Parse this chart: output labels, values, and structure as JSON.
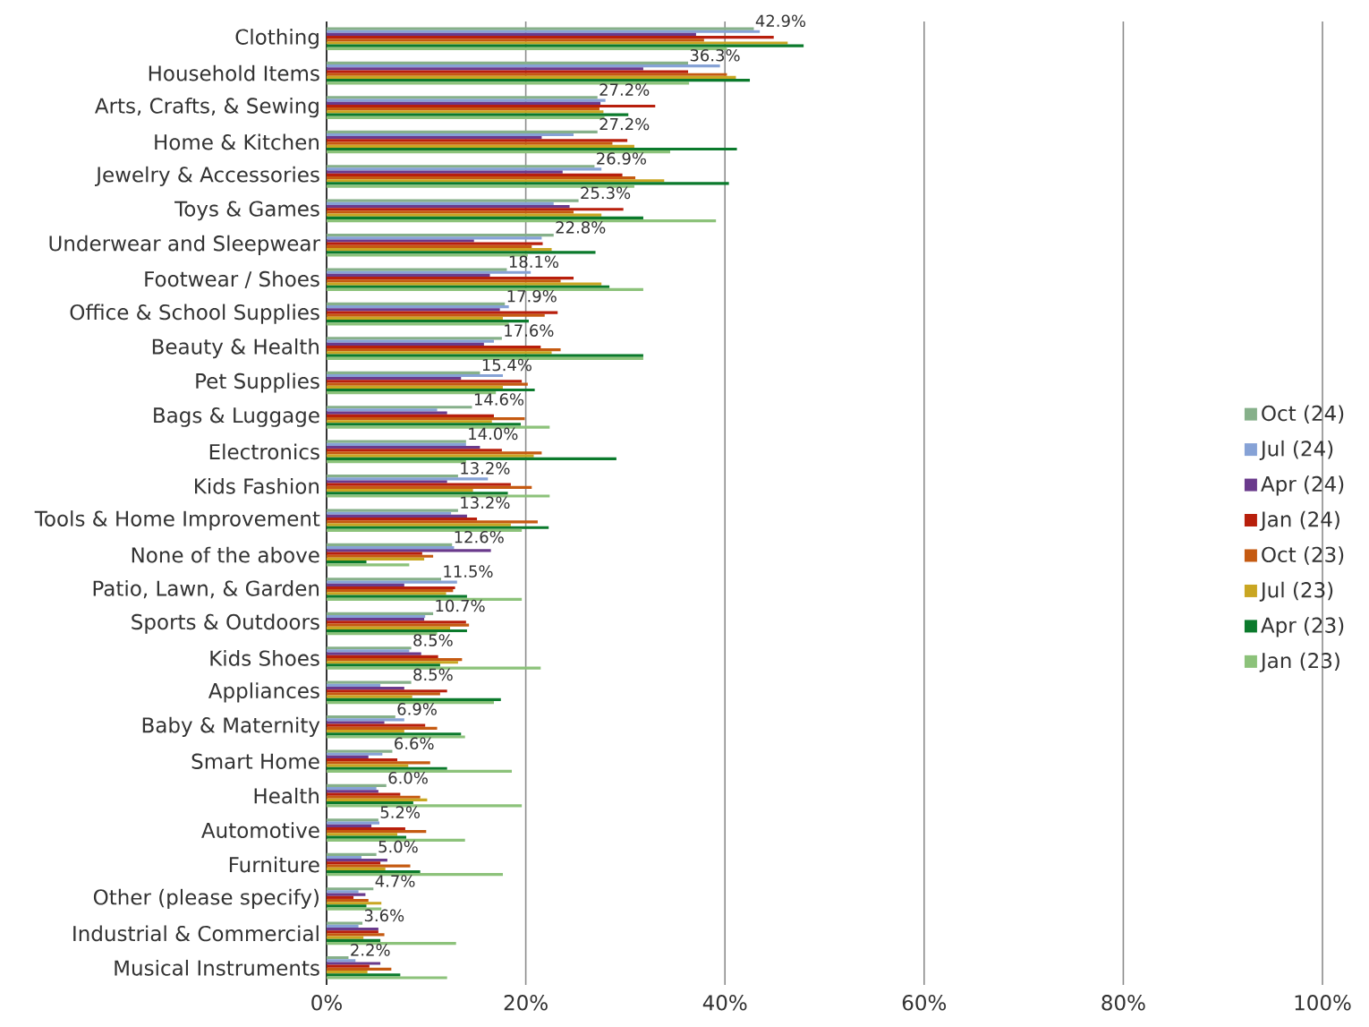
{
  "chart_data": {
    "type": "bar",
    "orientation": "horizontal",
    "categories": [
      "Clothing",
      "Household Items",
      "Arts, Crafts, & Sewing",
      "Home & Kitchen",
      "Jewelry & Accessories",
      "Toys & Games",
      "Underwear and Sleepwear",
      "Footwear / Shoes",
      "Office & School Supplies",
      "Beauty & Health",
      "Pet Supplies",
      "Bags & Luggage",
      "Electronics",
      "Kids Fashion",
      "Tools & Home Improvement",
      "None of the above",
      "Patio, Lawn, & Garden",
      "Sports & Outdoors",
      "Kids Shoes",
      "Appliances",
      "Baby & Maternity",
      "Smart Home",
      "Health",
      "Automotive",
      "Furniture",
      "Other (please specify)",
      "Industrial & Commercial",
      "Musical Instruments"
    ],
    "series": [
      {
        "name": "Oct (24)",
        "color": "#86b08a",
        "values": [
          42.9,
          36.3,
          27.2,
          27.2,
          26.9,
          25.3,
          22.8,
          18.1,
          17.9,
          17.6,
          15.4,
          14.6,
          14.0,
          13.2,
          13.2,
          12.6,
          11.5,
          10.7,
          8.5,
          8.5,
          6.9,
          6.6,
          6.0,
          5.2,
          5.0,
          4.7,
          3.6,
          2.2
        ],
        "value_labels": [
          "42.9%",
          "36.3%",
          "27.2%",
          "27.2%",
          "26.9%",
          "25.3%",
          "22.8%",
          "18.1%",
          "17.9%",
          "17.6%",
          "15.4%",
          "14.6%",
          "14.0%",
          "13.2%",
          "13.2%",
          "12.6%",
          "11.5%",
          "10.7%",
          "8.5%",
          "8.5%",
          "6.9%",
          "6.6%",
          "6.0%",
          "5.2%",
          "5.0%",
          "4.7%",
          "3.6%",
          "2.2%"
        ]
      },
      {
        "name": "Jul (24)",
        "color": "#86a2d6",
        "values": [
          43.5,
          39.5,
          28.0,
          24.8,
          27.6,
          22.8,
          21.6,
          20.5,
          18.3,
          16.8,
          17.7,
          11.1,
          14.0,
          16.2,
          12.5,
          12.8,
          13.1,
          9.9,
          8.3,
          5.4,
          7.8,
          5.6,
          5.0,
          5.3,
          3.5,
          3.2,
          3.2,
          2.9
        ]
      },
      {
        "name": "Apr (24)",
        "color": "#6a3a8c",
        "values": [
          37.1,
          31.8,
          27.5,
          21.6,
          23.7,
          24.4,
          14.8,
          16.4,
          17.4,
          15.8,
          13.5,
          12.1,
          15.4,
          12.1,
          14.1,
          16.5,
          7.8,
          9.8,
          9.5,
          7.8,
          5.8,
          4.2,
          5.2,
          4.5,
          6.1,
          3.9,
          5.2,
          5.4
        ]
      },
      {
        "name": "Jan (24)",
        "color": "#b81f0c",
        "values": [
          44.9,
          36.3,
          33.0,
          30.2,
          29.7,
          29.8,
          21.7,
          24.8,
          23.2,
          21.5,
          19.6,
          16.8,
          17.6,
          18.5,
          15.1,
          9.6,
          12.9,
          14.0,
          11.2,
          12.1,
          9.9,
          7.1,
          7.4,
          7.9,
          5.4,
          2.7,
          5.2,
          4.3
        ]
      },
      {
        "name": "Oct (23)",
        "color": "#c55a11",
        "values": [
          37.9,
          40.2,
          27.4,
          28.7,
          31.0,
          24.8,
          20.6,
          23.5,
          21.9,
          23.5,
          20.2,
          19.9,
          21.6,
          20.6,
          21.2,
          10.7,
          12.7,
          14.3,
          13.6,
          11.4,
          11.1,
          10.4,
          9.4,
          10.0,
          8.4,
          4.2,
          5.8,
          6.5
        ]
      },
      {
        "name": "Jul (23)",
        "color": "#c9a622",
        "values": [
          46.3,
          41.1,
          27.8,
          30.9,
          33.9,
          27.6,
          22.6,
          27.6,
          17.7,
          22.6,
          17.7,
          16.6,
          20.8,
          14.7,
          18.5,
          9.8,
          12.0,
          12.4,
          13.2,
          8.6,
          7.8,
          8.2,
          10.1,
          7.1,
          5.9,
          5.5,
          3.7,
          4.1
        ]
      },
      {
        "name": "Apr (23)",
        "color": "#0b7a2c",
        "values": [
          47.9,
          42.5,
          30.3,
          41.2,
          40.4,
          31.8,
          27.0,
          28.4,
          20.3,
          31.8,
          20.9,
          19.5,
          29.1,
          18.2,
          22.3,
          4.0,
          14.1,
          14.1,
          11.4,
          17.5,
          13.5,
          12.1,
          8.7,
          8.0,
          9.4,
          4.0,
          5.4,
          7.4
        ]
      },
      {
        "name": "Jan (23)",
        "color": "#8cc27a",
        "values": [
          40.2,
          36.4,
          27.9,
          34.5,
          30.9,
          39.1,
          20.2,
          31.8,
          18.3,
          31.8,
          17.0,
          22.4,
          14.0,
          22.4,
          19.6,
          8.3,
          19.6,
          11.1,
          21.5,
          16.8,
          13.9,
          18.6,
          19.6,
          13.9,
          17.7,
          5.5,
          13.0,
          12.1
        ]
      }
    ],
    "xlim": [
      0,
      100
    ],
    "xticks": [
      {
        "value": 0,
        "label": "0%"
      },
      {
        "value": 20,
        "label": "20%"
      },
      {
        "value": 40,
        "label": "40%"
      },
      {
        "value": 60,
        "label": "60%"
      },
      {
        "value": 80,
        "label": "80%"
      },
      {
        "value": 100,
        "label": "100%"
      }
    ],
    "grid": "x",
    "legend": "right"
  }
}
